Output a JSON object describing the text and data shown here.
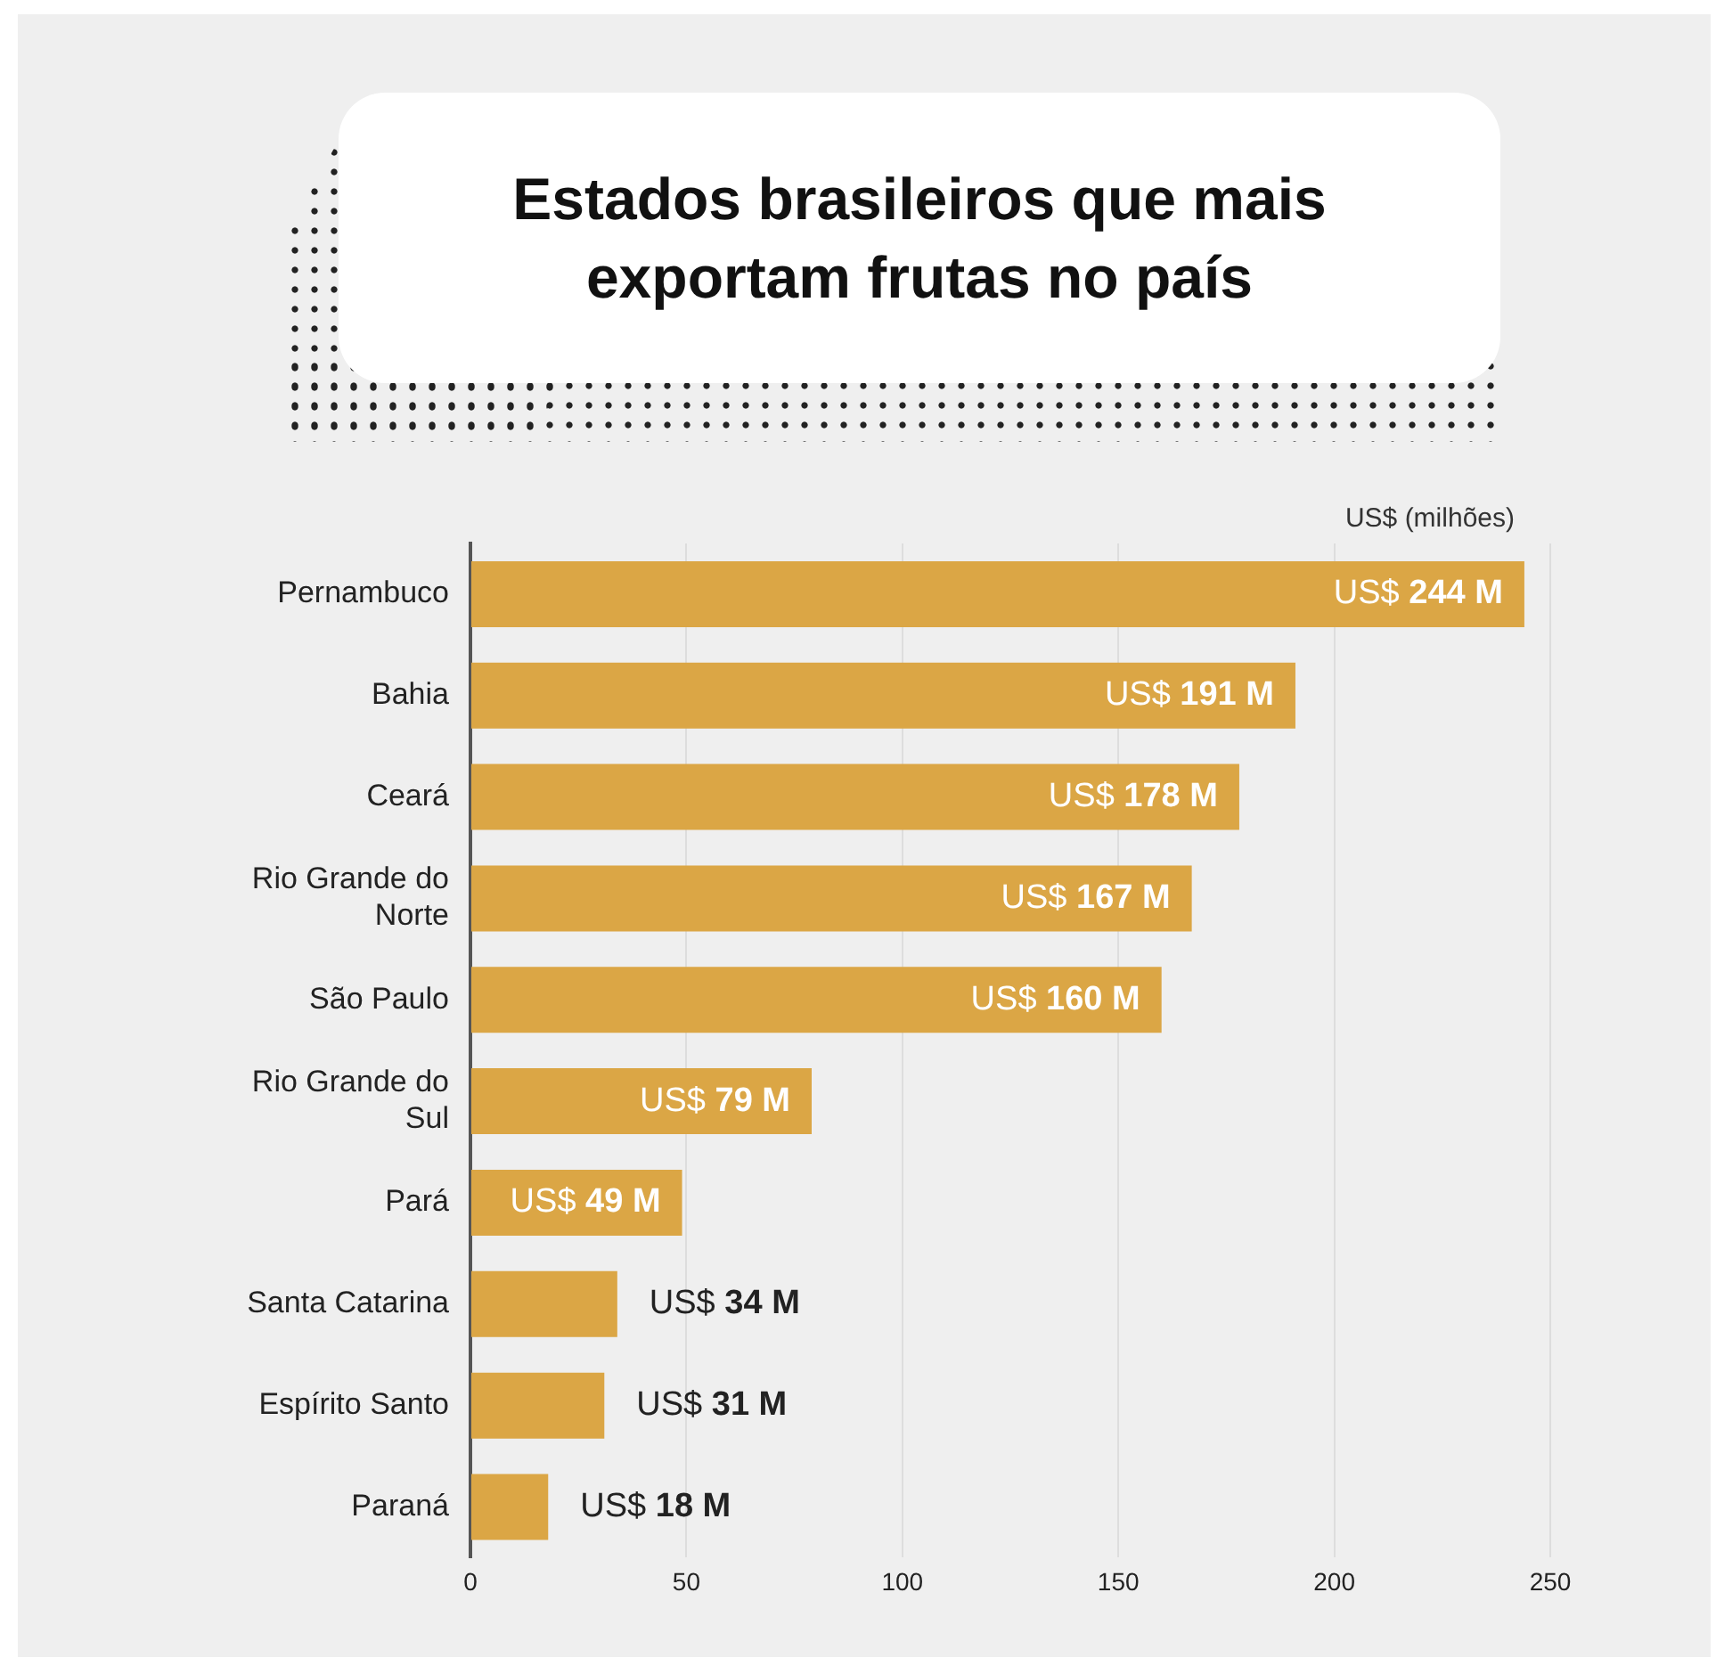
{
  "chart_data": {
    "type": "bar",
    "orientation": "horizontal",
    "title": "Estados brasileiros que mais exportam frutas no país",
    "xlabel": "US$ (milhões)",
    "categories": [
      "Pernambuco",
      "Bahia",
      "Ceará",
      "Rio Grande do Norte",
      "São Paulo",
      "Rio Grande do Sul",
      "Pará",
      "Santa Catarina",
      "Espírito Santo",
      "Paraná"
    ],
    "values": [
      244,
      191,
      178,
      167,
      160,
      79,
      49,
      34,
      31,
      18
    ],
    "value_labels": [
      "US$ 244 M",
      "US$ 191 M",
      "US$ 178 M",
      "US$ 167 M",
      "US$ 160 M",
      "US$ 79 M",
      "US$ 49 M",
      "US$ 34 M",
      "US$ 31 M",
      "US$ 18 M"
    ],
    "color": "#dba645",
    "xlim": [
      0,
      250
    ],
    "xticks": [
      0,
      50,
      100,
      150,
      200,
      250
    ],
    "grid": "x",
    "legend": false
  }
}
